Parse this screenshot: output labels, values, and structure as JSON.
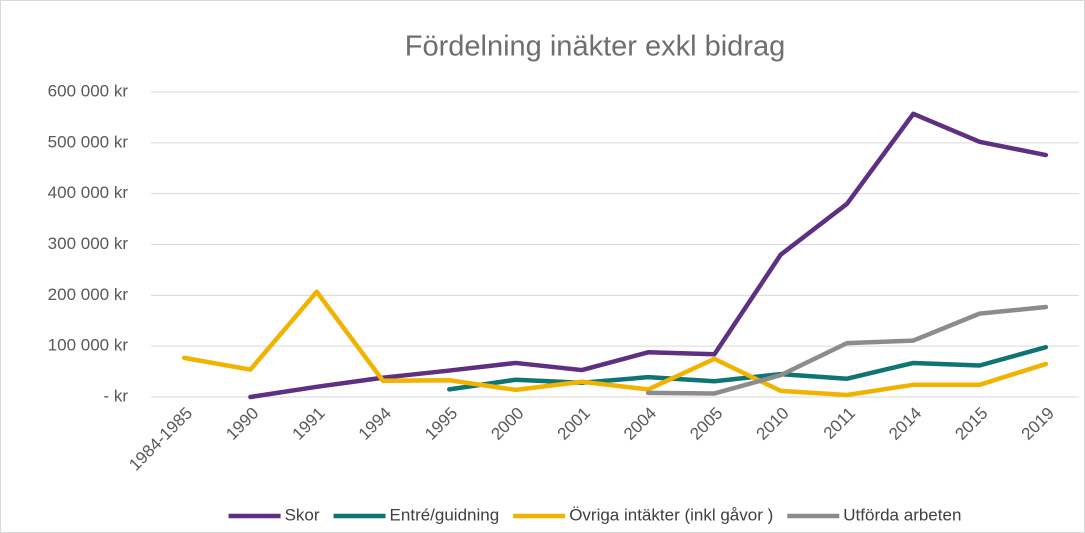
{
  "chart_data": {
    "type": "line",
    "title": "Fördelning inäkter  exkl bidrag",
    "categories": [
      "1984-1985",
      "1990",
      "1991",
      "1994",
      "1995",
      "2000",
      "2001",
      "2004",
      "2005",
      "2010",
      "2011",
      "2014",
      "2015",
      "2019"
    ],
    "series": [
      {
        "name": "Skor",
        "color": "#5f2f82",
        "values": [
          null,
          0,
          20000,
          38000,
          52000,
          67000,
          53000,
          88000,
          84000,
          280000,
          380000,
          557000,
          502000,
          476000
        ]
      },
      {
        "name": "Entré/guidning",
        "color": "#0f7474",
        "values": [
          null,
          null,
          null,
          null,
          15000,
          34000,
          28000,
          39000,
          31000,
          45000,
          36000,
          67000,
          62000,
          98000
        ]
      },
      {
        "name": "Övriga intäkter  (inkl gåvor )",
        "color": "#f2b200",
        "values": [
          77000,
          54000,
          207000,
          32000,
          33000,
          14000,
          30000,
          15000,
          75000,
          12000,
          4000,
          24000,
          24000,
          65000
        ]
      },
      {
        "name": "Utförda arbeten",
        "color": "#8c8c8c",
        "values": [
          null,
          null,
          null,
          null,
          null,
          null,
          null,
          8000,
          7000,
          43000,
          106000,
          111000,
          164000,
          177000
        ]
      }
    ],
    "ylim": [
      0,
      600000
    ],
    "yticks": [
      {
        "value": 0,
        "label": "-   kr"
      },
      {
        "value": 100000,
        "label": "100 000 kr"
      },
      {
        "value": 200000,
        "label": "200 000 kr"
      },
      {
        "value": 300000,
        "label": "300 000 kr"
      },
      {
        "value": 400000,
        "label": "400 000 kr"
      },
      {
        "value": 500000,
        "label": "500 000 kr"
      },
      {
        "value": 600000,
        "label": "600 000 kr"
      }
    ],
    "grid": true,
    "legend": "bottom"
  }
}
